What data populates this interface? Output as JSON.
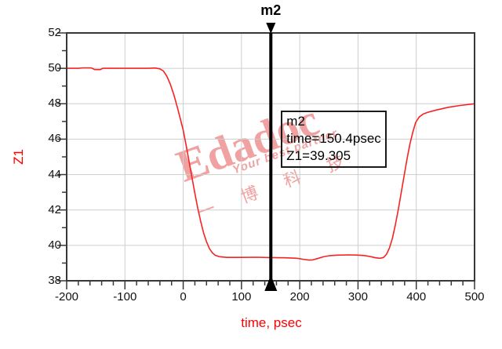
{
  "marker": {
    "id": "m2",
    "time_psec": 150.4,
    "value": 39.305
  },
  "marker_box": {
    "line1": "m2",
    "line2": "time=150.4psec",
    "line3": "Z1=39.305"
  },
  "watermark": {
    "brand": "Edadoc",
    "tagline": "Your best partner",
    "cjk": "一 博 科 技"
  },
  "colors": {
    "trace": "#f82222",
    "axis_title": "#ff0000",
    "grid": "#cdcdcd",
    "frame": "#383838",
    "tick": "#383838",
    "marker": "#000000",
    "tick_text": "#111111",
    "watermark": "#e86a6a",
    "background": "#ffffff"
  },
  "chart_data": {
    "type": "line",
    "title": "",
    "xlabel": "time, psec",
    "ylabel": "Z1",
    "xlim": [
      -200,
      500
    ],
    "ylim": [
      38,
      52
    ],
    "x_major_ticks": [
      -200,
      -100,
      0,
      100,
      200,
      300,
      400,
      500
    ],
    "x_minor_step": 20,
    "y_major_ticks": [
      52,
      50,
      48,
      46,
      44,
      42,
      40,
      38
    ],
    "y_minor_ticks": [
      51,
      49,
      47,
      45,
      43,
      41,
      39
    ],
    "grid": true,
    "legend_position": "none",
    "series": [
      {
        "name": "Z1",
        "points": [
          [
            -200,
            50
          ],
          [
            -180,
            50
          ],
          [
            -172,
            50.03
          ],
          [
            -158,
            50.03
          ],
          [
            -152,
            49.93
          ],
          [
            -142,
            49.93
          ],
          [
            -138,
            50
          ],
          [
            -100,
            50
          ],
          [
            -60,
            50
          ],
          [
            -48,
            50.02
          ],
          [
            -40,
            49.97
          ],
          [
            -34,
            49.85
          ],
          [
            -28,
            49.55
          ],
          [
            -22,
            49.1
          ],
          [
            -16,
            48.5
          ],
          [
            -10,
            47.8
          ],
          [
            -5,
            47.15
          ],
          [
            0,
            46.5
          ],
          [
            5,
            45.65
          ],
          [
            10,
            44.75
          ],
          [
            15,
            43.85
          ],
          [
            20,
            42.95
          ],
          [
            25,
            42.1
          ],
          [
            30,
            41.35
          ],
          [
            35,
            40.7
          ],
          [
            40,
            40.2
          ],
          [
            45,
            39.82
          ],
          [
            50,
            39.58
          ],
          [
            55,
            39.44
          ],
          [
            62,
            39.36
          ],
          [
            75,
            39.32
          ],
          [
            100,
            39.32
          ],
          [
            125,
            39.33
          ],
          [
            150,
            39.31
          ],
          [
            175,
            39.3
          ],
          [
            195,
            39.27
          ],
          [
            205,
            39.22
          ],
          [
            215,
            39.17
          ],
          [
            222,
            39.18
          ],
          [
            230,
            39.25
          ],
          [
            240,
            39.35
          ],
          [
            252,
            39.42
          ],
          [
            265,
            39.45
          ],
          [
            285,
            39.46
          ],
          [
            300,
            39.45
          ],
          [
            312,
            39.42
          ],
          [
            322,
            39.36
          ],
          [
            330,
            39.3
          ],
          [
            338,
            39.27
          ],
          [
            344,
            39.32
          ],
          [
            349,
            39.5
          ],
          [
            354,
            39.85
          ],
          [
            359,
            40.4
          ],
          [
            364,
            41.15
          ],
          [
            369,
            42.0
          ],
          [
            374,
            42.95
          ],
          [
            379,
            43.9
          ],
          [
            384,
            44.85
          ],
          [
            389,
            45.7
          ],
          [
            394,
            46.4
          ],
          [
            399,
            46.95
          ],
          [
            405,
            47.25
          ],
          [
            412,
            47.42
          ],
          [
            420,
            47.52
          ],
          [
            435,
            47.65
          ],
          [
            455,
            47.8
          ],
          [
            475,
            47.9
          ],
          [
            500,
            48.0
          ]
        ]
      }
    ],
    "markers": [
      {
        "id": "m2",
        "time_psec": 150.4,
        "value": 39.305
      }
    ]
  }
}
